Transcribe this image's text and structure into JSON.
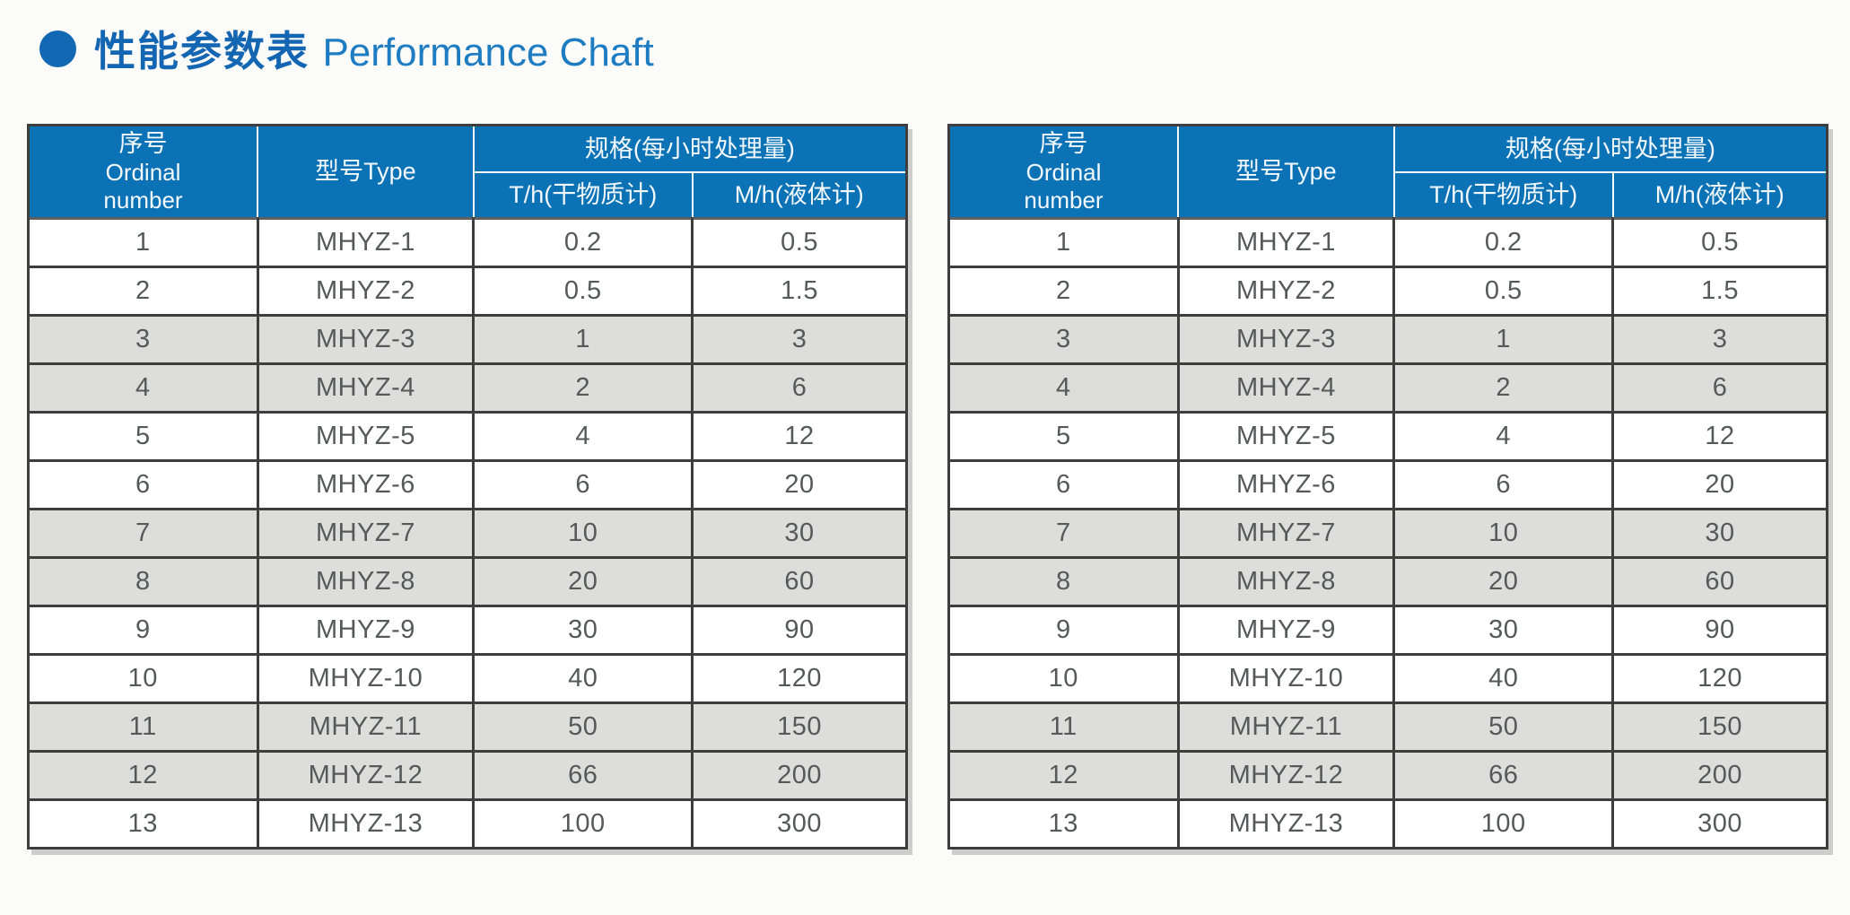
{
  "title": {
    "zh": "性能参数表",
    "en": "Performance Chaft"
  },
  "table": {
    "header": {
      "ordinal_zh": "序号",
      "ordinal_en_1": "Ordinal",
      "ordinal_en_2": "number",
      "type": "型号Type",
      "spec_group": "规格(每小时处理量)",
      "spec_th": "T/h(干物质计)",
      "spec_mh": "M/h(液体计)"
    },
    "rows": [
      {
        "no": "1",
        "type": "MHYZ-1",
        "th": "0.2",
        "mh": "0.5",
        "shaded": false
      },
      {
        "no": "2",
        "type": "MHYZ-2",
        "th": "0.5",
        "mh": "1.5",
        "shaded": false
      },
      {
        "no": "3",
        "type": "MHYZ-3",
        "th": "1",
        "mh": "3",
        "shaded": true
      },
      {
        "no": "4",
        "type": "MHYZ-4",
        "th": "2",
        "mh": "6",
        "shaded": true
      },
      {
        "no": "5",
        "type": "MHYZ-5",
        "th": "4",
        "mh": "12",
        "shaded": false
      },
      {
        "no": "6",
        "type": "MHYZ-6",
        "th": "6",
        "mh": "20",
        "shaded": false
      },
      {
        "no": "7",
        "type": "MHYZ-7",
        "th": "10",
        "mh": "30",
        "shaded": true
      },
      {
        "no": "8",
        "type": "MHYZ-8",
        "th": "20",
        "mh": "60",
        "shaded": true
      },
      {
        "no": "9",
        "type": "MHYZ-9",
        "th": "30",
        "mh": "90",
        "shaded": false
      },
      {
        "no": "10",
        "type": "MHYZ-10",
        "th": "40",
        "mh": "120",
        "shaded": false
      },
      {
        "no": "11",
        "type": "MHYZ-11",
        "th": "50",
        "mh": "150",
        "shaded": true
      },
      {
        "no": "12",
        "type": "MHYZ-12",
        "th": "66",
        "mh": "200",
        "shaded": true
      },
      {
        "no": "13",
        "type": "MHYZ-13",
        "th": "100",
        "mh": "300",
        "shaded": false
      }
    ]
  },
  "colors": {
    "header_bg": "#0b72b6",
    "title_zh": "#1566b2",
    "title_en": "#1e7cc3",
    "bullet": "#1268b3",
    "row_shaded": "#dddddb",
    "body_text": "#57585a"
  }
}
